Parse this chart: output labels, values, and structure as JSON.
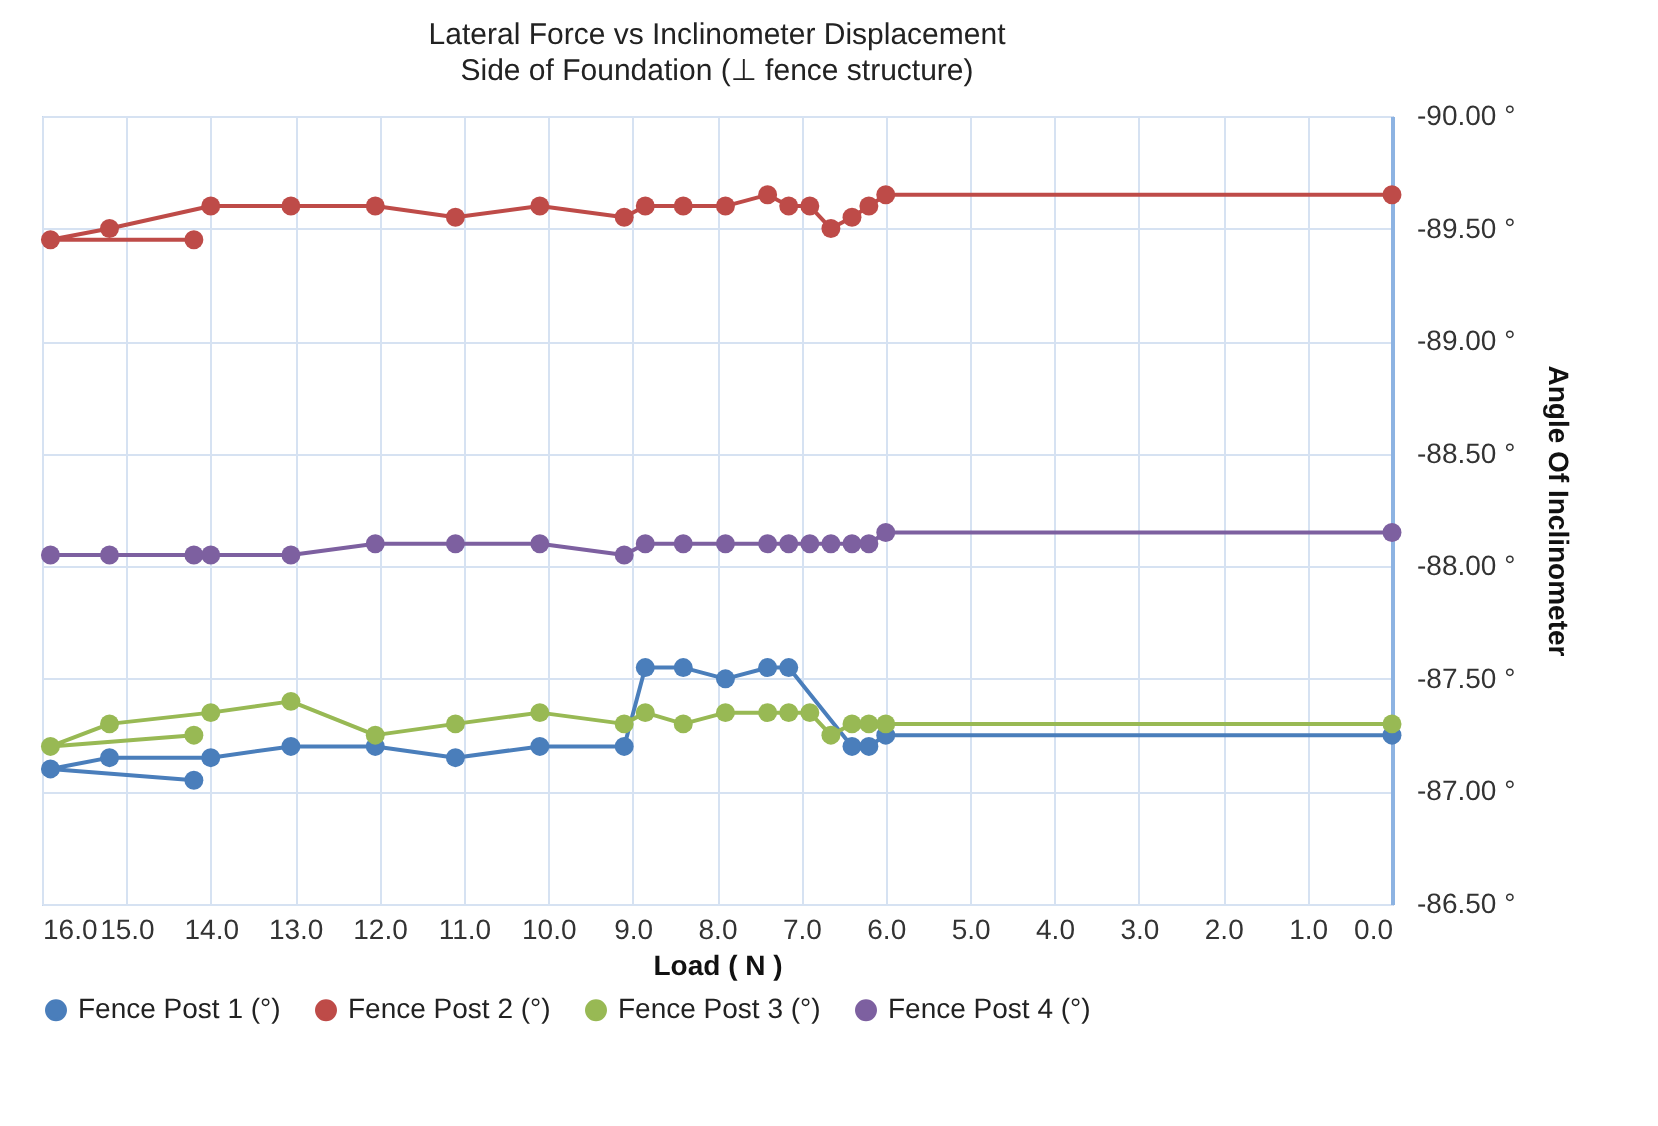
{
  "chart_data": {
    "type": "line",
    "title": "Lateral Force vs Inclinometer Displacement",
    "subtitle": "Side of Foundation (⊥ fence structure)",
    "xlabel": "Load ( N )",
    "ylabel": "Angle Of Inclinometer",
    "x": [
      14.2,
      15.9,
      15.2,
      14.0,
      13.05,
      12.05,
      11.1,
      10.1,
      9.1,
      8.85,
      8.4,
      7.9,
      7.4,
      7.15,
      6.9,
      6.65,
      6.4,
      6.2,
      6.0,
      0.0
    ],
    "series": [
      {
        "name": "Fence Post 1 (°)",
        "color": "#4a7ebb",
        "values": [
          -87.05,
          -87.1,
          -87.15,
          -87.15,
          -87.2,
          -87.2,
          -87.15,
          -87.2,
          -87.2,
          -87.55,
          -87.55,
          -87.5,
          -87.55,
          -87.55,
          null,
          null,
          -87.2,
          -87.2,
          -87.25,
          -87.25
        ]
      },
      {
        "name": "Fence Post 2 (°)",
        "color": "#be4b48",
        "values": [
          -89.45,
          -89.45,
          -89.5,
          -89.6,
          -89.6,
          -89.6,
          -89.55,
          -89.6,
          -89.55,
          -89.6,
          -89.6,
          -89.6,
          -89.65,
          -89.6,
          -89.6,
          -89.5,
          -89.55,
          -89.6,
          -89.65,
          -89.65
        ]
      },
      {
        "name": "Fence Post 3 (°)",
        "color": "#98b954",
        "values": [
          -87.25,
          -87.2,
          -87.3,
          -87.35,
          -87.4,
          -87.25,
          -87.3,
          -87.35,
          -87.3,
          -87.35,
          -87.3,
          -87.35,
          -87.35,
          -87.35,
          -87.35,
          -87.25,
          -87.3,
          -87.3,
          -87.3,
          -87.3
        ]
      },
      {
        "name": "Fence Post 4 (°)",
        "color": "#7d60a0",
        "values": [
          -88.05,
          -88.05,
          -88.05,
          -88.05,
          -88.05,
          -88.1,
          -88.1,
          -88.1,
          -88.05,
          -88.1,
          -88.1,
          -88.1,
          -88.1,
          -88.1,
          -88.1,
          -88.1,
          -88.1,
          -88.1,
          -88.15,
          -88.15
        ]
      }
    ],
    "xlim": [
      16,
      0
    ],
    "xticks": [
      {
        "value": 16,
        "label": "16.0"
      },
      {
        "value": 15,
        "label": "15.0"
      },
      {
        "value": 14,
        "label": "14.0"
      },
      {
        "value": 13,
        "label": "13.0"
      },
      {
        "value": 12,
        "label": "12.0"
      },
      {
        "value": 11,
        "label": "11.0"
      },
      {
        "value": 10,
        "label": "10.0"
      },
      {
        "value": 9,
        "label": "9.0"
      },
      {
        "value": 8,
        "label": "8.0"
      },
      {
        "value": 7,
        "label": "7.0"
      },
      {
        "value": 6,
        "label": "6.0"
      },
      {
        "value": 5,
        "label": "5.0"
      },
      {
        "value": 4,
        "label": "4.0"
      },
      {
        "value": 3,
        "label": "3.0"
      },
      {
        "value": 2,
        "label": "2.0"
      },
      {
        "value": 1,
        "label": "1.0"
      },
      {
        "value": 0,
        "label": "0.0"
      }
    ],
    "ylim": [
      -86.5,
      -90
    ],
    "yticks": [
      {
        "value": -90,
        "label": "-90.00 °"
      },
      {
        "value": -89.5,
        "label": "-89.50 °"
      },
      {
        "value": -89,
        "label": "-89.00 °"
      },
      {
        "value": -88.5,
        "label": "-88.50 °"
      },
      {
        "value": -88,
        "label": "-88.00 °"
      },
      {
        "value": -87.5,
        "label": "-87.50 °"
      },
      {
        "value": -87,
        "label": "-87.00 °"
      },
      {
        "value": -86.5,
        "label": "-86.50 °"
      }
    ],
    "grid": true,
    "legend": "bottom",
    "marker": "circle",
    "line_style": "solid"
  }
}
